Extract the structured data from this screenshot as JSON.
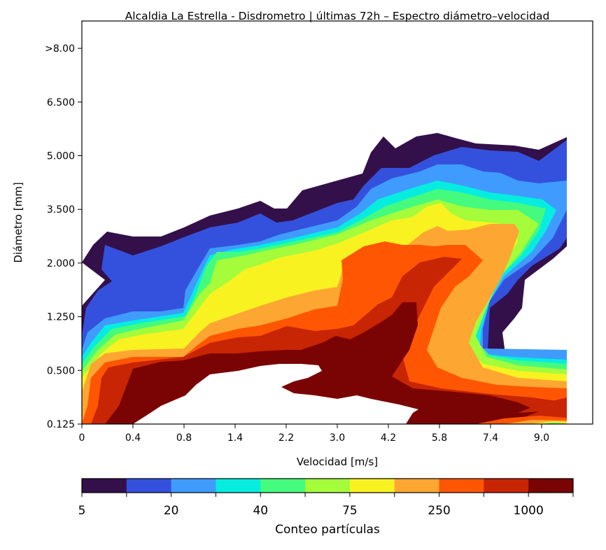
{
  "chart_data": {
    "type": "contour",
    "title": "Alcaldia La Estrella - Disdrometro | últimas 72h – Espectro diámetro–velocidad",
    "xlabel": "Velocidad [m/s]",
    "ylabel": "Diámetro [mm]",
    "x_ticks": [
      "0",
      "0.4",
      "0.8",
      "1.4",
      "2.2",
      "3.0",
      "4.2",
      "5.8",
      "7.4",
      "9.0"
    ],
    "y_ticks": [
      "0.125",
      "0.500",
      "1.250",
      "2.000",
      "3.500",
      "5.000",
      "6.500",
      ">8.00"
    ],
    "grid": false,
    "colorbar": {
      "label": "Conteo partículas",
      "position": "bottom",
      "tick_labels": [
        "5",
        "20",
        "40",
        "75",
        "250",
        "1000"
      ],
      "colors": [
        "#33104a",
        "#3451dd",
        "#3f9cfe",
        "#06ede0",
        "#44fb7e",
        "#a4fc3b",
        "#f9f221",
        "#fea632",
        "#fe5602",
        "#c72503",
        "#7a0403"
      ]
    }
  }
}
